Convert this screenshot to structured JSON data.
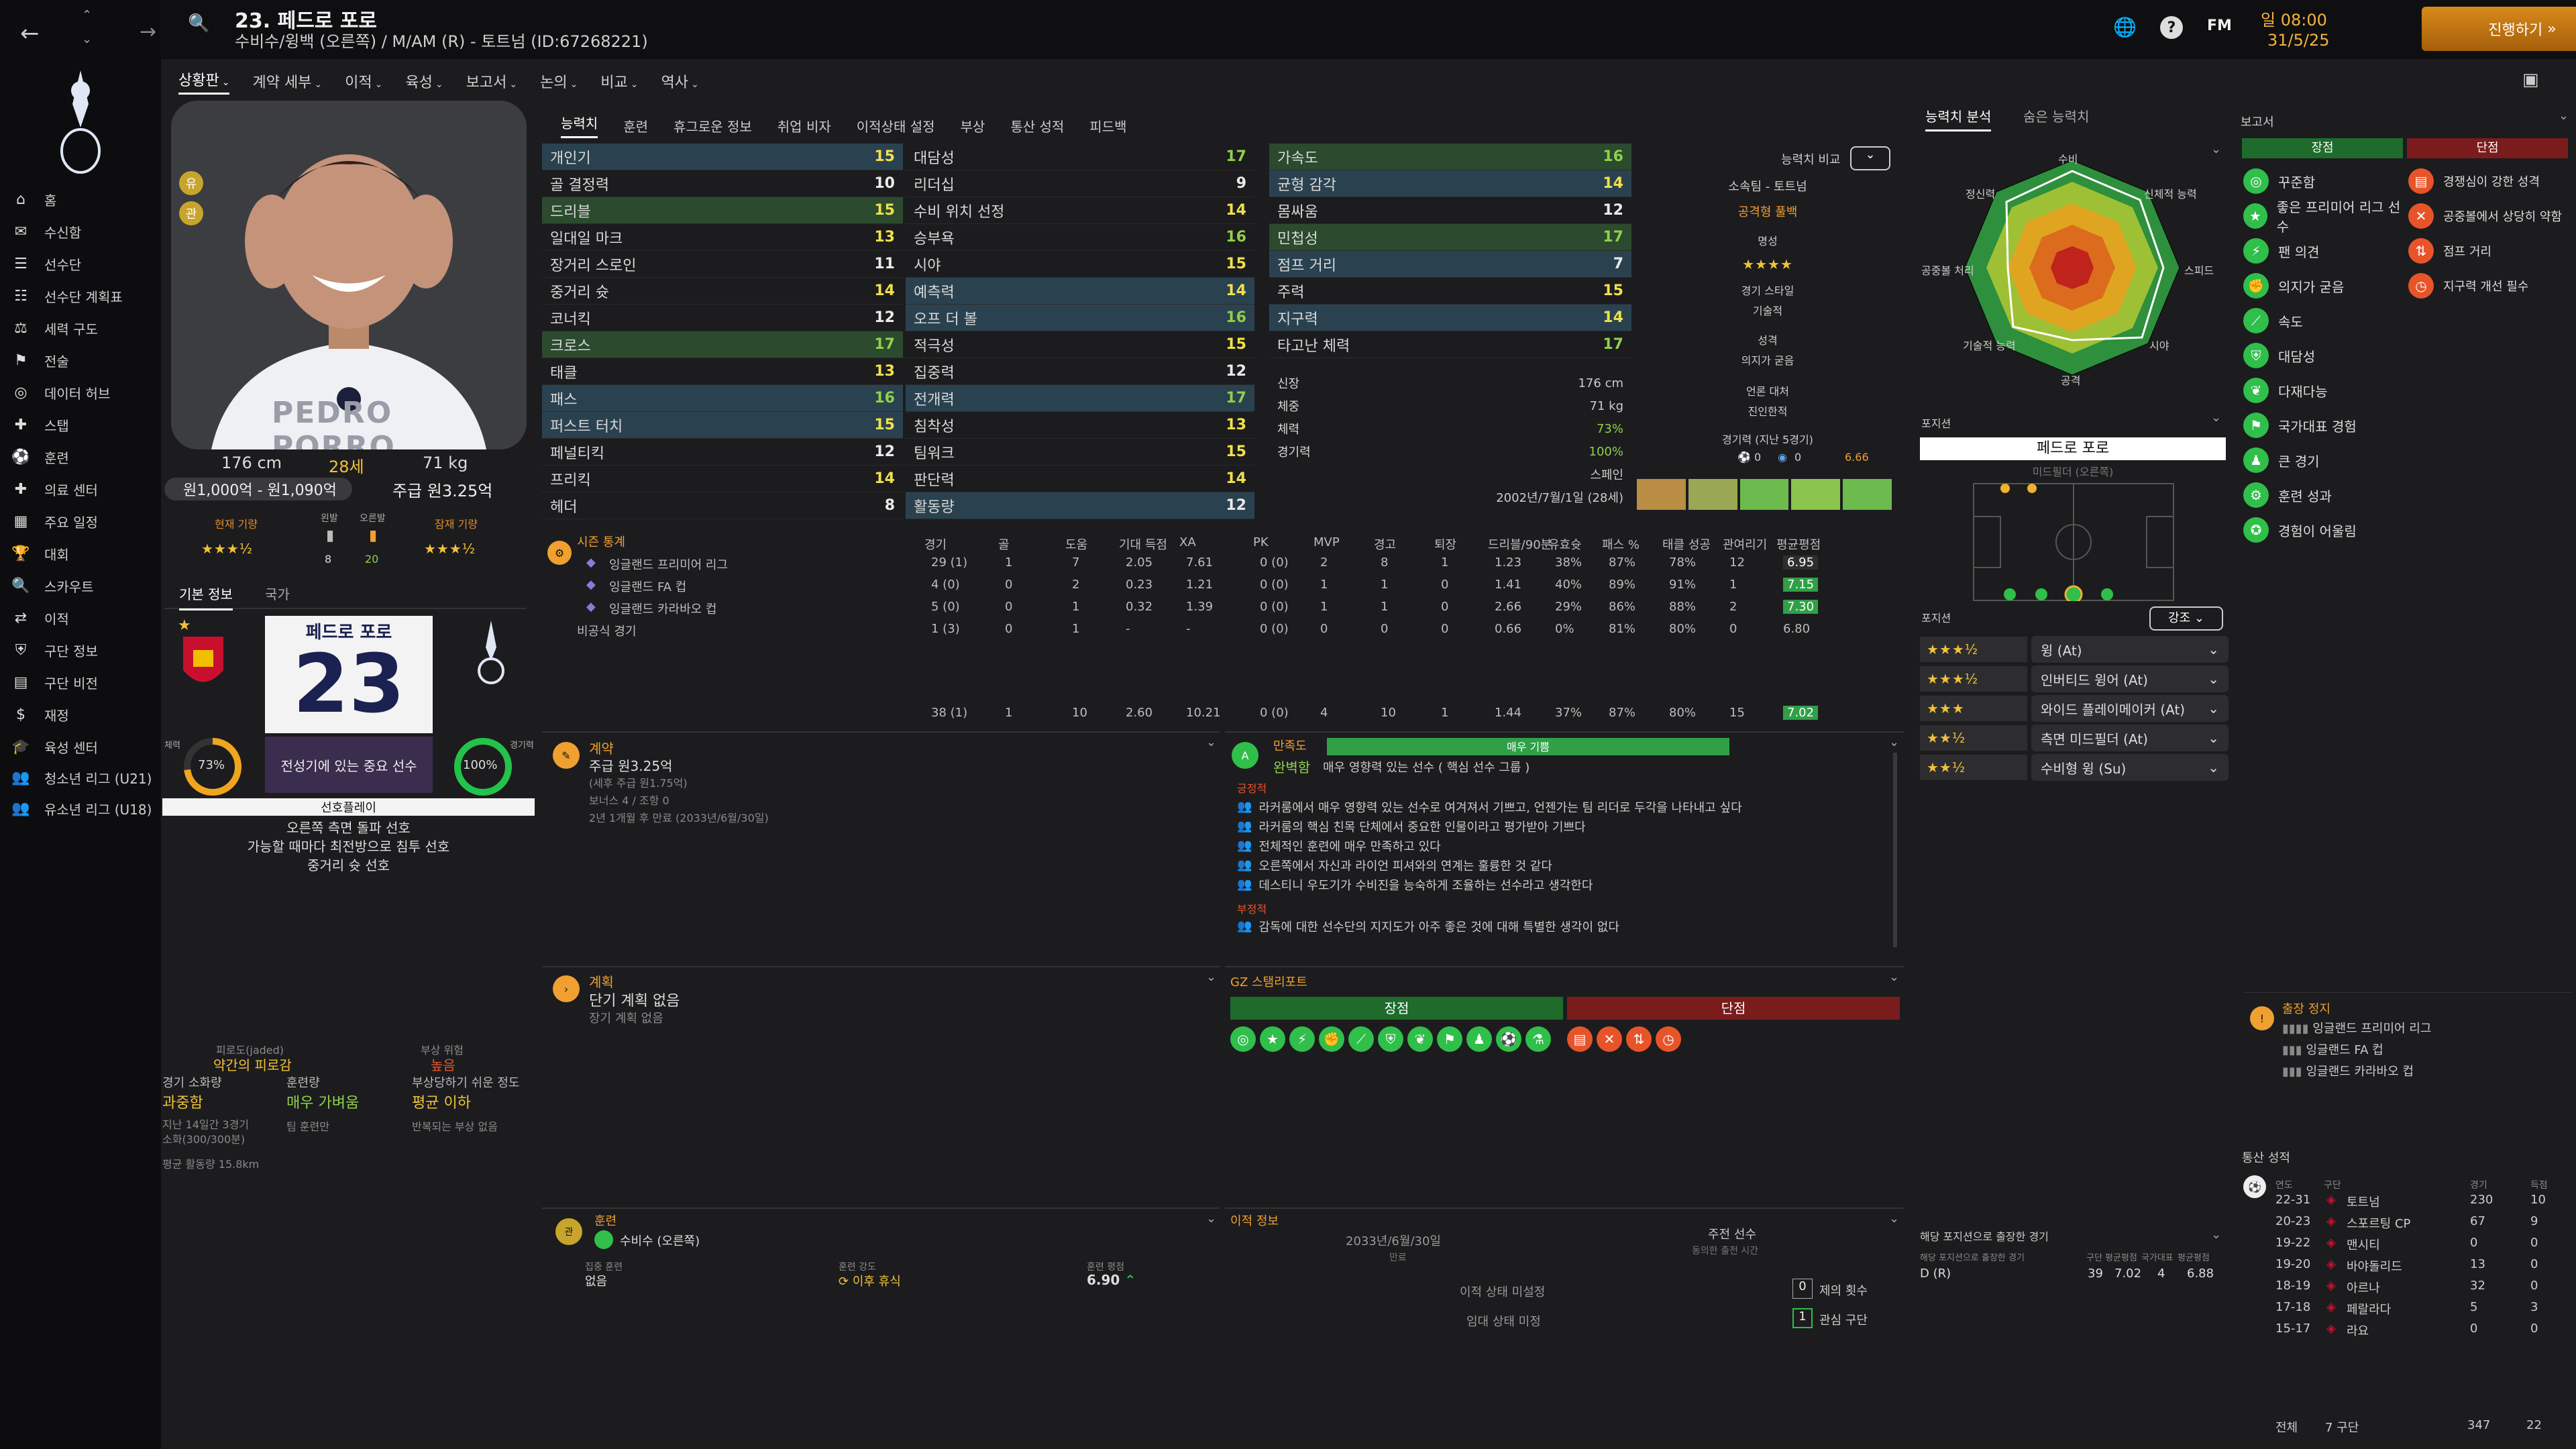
{
  "window": {
    "title": "23. 페드로 포로",
    "subtitle": "수비수/윙백 (오른쪽) / M/AM (R) - 토트넘 (ID:67268221)"
  },
  "clock": {
    "date": "일 08:00",
    "day": "31/5/25",
    "continue": "진행하기"
  },
  "brand": "FM",
  "nav": [
    "홈",
    "수신함",
    "선수단",
    "선수단 계획표",
    "세력 구도",
    "전술",
    "데이터 허브",
    "스탭",
    "훈련",
    "의료 센터",
    "주요 일정",
    "대회",
    "스카우트",
    "이적",
    "구단 정보",
    "구단 비전",
    "재정",
    "육성 센터",
    "청소년 리그 (U21)",
    "유소년 리그 (U18)"
  ],
  "subnav": [
    "상황판",
    "계약 세부",
    "이적",
    "육성",
    "보고서",
    "논의",
    "비교",
    "역사"
  ],
  "tabs": [
    "능력치",
    "훈련",
    "휴그로운 정보",
    "취업 비자",
    "이적상태 설정",
    "부상",
    "통산 성적",
    "피드백"
  ],
  "right_tabs": [
    "능력치 분석",
    "숨은 능력치"
  ],
  "profile": {
    "height": "176 cm",
    "age": "28세",
    "weight": "71 kg",
    "value": "원1,000억 - 원1,090억",
    "wage": "주급 원3.25억",
    "current_ability": "현재 기량",
    "potential_ability": "잠재 기량",
    "kit_l_label": "왼발",
    "kit_r_label": "오른발",
    "left_foot": "8",
    "right_foot": "20",
    "shirt_name": "PEDRO PORRO",
    "badges": [
      "유",
      "관"
    ]
  },
  "info_tabs": [
    "기본 정보",
    "국가"
  ],
  "card": {
    "name": "페드로 포로",
    "number": "23",
    "note": "전성기에 있는 중요 선수",
    "fitness_label": "체력",
    "fitness": "73%",
    "sharpness_label": "경기력",
    "sharpness": "100%"
  },
  "prefs": {
    "title": "선호플레이",
    "lines": [
      "오른쪽 측면 돌파 선호",
      "가능할 때마다 최전방으로 침투 선호",
      "중거리 슛 선호"
    ]
  },
  "fatigue": {
    "label1": "피로도(jaded)",
    "value1": "약간의 피로감",
    "label2": "부상 위험",
    "value2": "높음",
    "load_label": "경기 소화량",
    "load": "과중함",
    "training_label": "훈련량",
    "training": "매우 가벼움",
    "injury_label": "부상당하기 쉬운 정도",
    "injury": "평균 이하",
    "load_note": "지난 14일간 3경기\n소화(300/300분)",
    "train_note": "팀 훈련만",
    "injury_note": "반복되는 부상 없음",
    "distance": "평균 활동량 15.8km"
  },
  "attrs_col1": [
    [
      "개인기",
      "15"
    ],
    [
      "골 결정력",
      "10"
    ],
    [
      "드리블",
      "15"
    ],
    [
      "일대일 마크",
      "13"
    ],
    [
      "장거리 스로인",
      "11"
    ],
    [
      "중거리 슛",
      "14"
    ],
    [
      "코너킥",
      "12"
    ],
    [
      "크로스",
      "17"
    ],
    [
      "태클",
      "13"
    ],
    [
      "패스",
      "16"
    ],
    [
      "퍼스트 터치",
      "15"
    ],
    [
      "페널티킥",
      "12"
    ],
    [
      "프리킥",
      "14"
    ],
    [
      "헤더",
      "8"
    ]
  ],
  "attrs_col2": [
    [
      "대담성",
      "17"
    ],
    [
      "리더십",
      "9"
    ],
    [
      "수비 위치 선정",
      "14"
    ],
    [
      "승부욕",
      "16"
    ],
    [
      "시야",
      "15"
    ],
    [
      "예측력",
      "14"
    ],
    [
      "오프 더 볼",
      "16"
    ],
    [
      "적극성",
      "15"
    ],
    [
      "집중력",
      "12"
    ],
    [
      "전개력",
      "17"
    ],
    [
      "침착성",
      "13"
    ],
    [
      "팀워크",
      "15"
    ],
    [
      "판단력",
      "14"
    ],
    [
      "활동량",
      "12"
    ]
  ],
  "attrs_col3": [
    [
      "가속도",
      "16"
    ],
    [
      "균형 감각",
      "14"
    ],
    [
      "몸싸움",
      "12"
    ],
    [
      "민첩성",
      "17"
    ],
    [
      "점프 거리",
      "7"
    ],
    [
      "주력",
      "15"
    ],
    [
      "지구력",
      "14"
    ],
    [
      "타고난 체력",
      "17"
    ]
  ],
  "vitals": [
    [
      "신장",
      "176 cm"
    ],
    [
      "체중",
      "71 kg"
    ],
    [
      "체력",
      "73%"
    ],
    [
      "경기력",
      "100%"
    ],
    [
      "",
      "스페인"
    ],
    [
      "",
      "2002년/7월/1일 (28세)"
    ]
  ],
  "compare": {
    "label": "능력치 비교",
    "club": "소속팀 - 토트넘",
    "role": "공격형 풀백",
    "rep": "명성",
    "rep_stars": "★★★★",
    "style": "경기 스타일",
    "style_v": "기술적",
    "pers": "성격",
    "pers_v": "의지가 굳음",
    "media": "언론 대처",
    "media_v": "진인한적",
    "form": "경기력 (지난 5경기)",
    "g": "0",
    "a": "0",
    "rating": "6.66"
  },
  "season": {
    "title": "시즌 통계",
    "headers": [
      "경기",
      "골",
      "도움",
      "기대 득점",
      "XA",
      "PK",
      "MVP",
      "경고",
      "퇴장",
      "드리블/90분",
      "유효슛",
      "패스 %",
      "태클 성공",
      "관여리기",
      "평균평점"
    ],
    "rows": [
      [
        "잉글랜드 프리미어 리그",
        "29 (1)",
        "1",
        "7",
        "2.05",
        "7.61",
        "0 (0)",
        "2",
        "8",
        "1",
        "1.23",
        "38%",
        "87%",
        "78%",
        "12",
        "6.95"
      ],
      [
        "잉글랜드 FA 컵",
        "4 (0)",
        "0",
        "2",
        "0.23",
        "1.21",
        "0 (0)",
        "1",
        "1",
        "0",
        "1.41",
        "40%",
        "89%",
        "91%",
        "1",
        "7.15"
      ],
      [
        "잉글랜드 카라바오 컵",
        "5 (0)",
        "0",
        "1",
        "0.32",
        "1.39",
        "0 (0)",
        "1",
        "1",
        "0",
        "2.66",
        "29%",
        "86%",
        "88%",
        "2",
        "7.30"
      ],
      [
        "비공식 경기",
        "1 (3)",
        "0",
        "1",
        "-",
        "-",
        "0 (0)",
        "0",
        "0",
        "0",
        "0.66",
        "0%",
        "81%",
        "80%",
        "0",
        "6.80"
      ]
    ],
    "total": [
      "38 (1)",
      "1",
      "10",
      "2.60",
      "10.21",
      "0 (0)",
      "4",
      "10",
      "1",
      "1.44",
      "37%",
      "87%",
      "80%",
      "15",
      "7.02"
    ]
  },
  "contract": {
    "title": "계약",
    "wage": "주급 원3.25억",
    "sub": "(세후 주급 원1.75억)",
    "bonus": "보너스 4 / 조항 0",
    "expiry": "2년 1개월 후 만료 (2033년/6월/30일)"
  },
  "plan": {
    "title": "계획",
    "short": "단기 계획 없음",
    "long": "장기 계획 없음"
  },
  "satisfaction": {
    "title": "만족도",
    "role": "완벽함",
    "role_desc": "매우 영향력 있는 선수 ( 핵심 선수 그룹 )",
    "bar": "매우 기쁨",
    "pos_label": "긍정적",
    "positives": [
      "라커룸에서 매우 영향력 있는 선수로 여겨져서 기쁘고, 언젠가는 팀 리더로 두각을 나타내고 싶다",
      "라커룸의 핵심 친목 단체에서 중요한 인물이라고 평가받아 기쁘다",
      "전체적인 훈련에 매우 만족하고 있다",
      "오른쪽에서 자신과 라이언 피셔와의 연계는 훌륭한 것 같다",
      "데스티니 우도기가 수비진을 능숙하게 조율하는 선수라고 생각한다"
    ],
    "neg_label": "부정적",
    "negatives": [
      "감독에 대한 선수단의 지지도가 아주 좋은 것에 대해 특별한 생각이 없다"
    ]
  },
  "report": {
    "title": "GZ 스탬리포트",
    "strengths": "장점",
    "weaknesses": "단점",
    "green_icons": [
      "target",
      "star",
      "bolt",
      "fist",
      "boot",
      "shield",
      "wings",
      "flag",
      "crowd",
      "dribble",
      "flask"
    ],
    "red_icons": [
      "book",
      "cross",
      "swap",
      "clock"
    ]
  },
  "training": {
    "title": "훈련",
    "position": "수비수 (오른쪽)",
    "focus_label": "집중 훈련",
    "focus": "없음",
    "intensity_label": "훈련 강도",
    "intensity": "이후 휴식",
    "rating_label": "훈련 평점",
    "rating": "6.90"
  },
  "transfer": {
    "title": "이적 정보",
    "date": "2033년/6월/30일",
    "date_label": "만료",
    "rec": "주전 선수",
    "rec_label": "동의한 출전 시간",
    "status1": "이적 상태 미설정",
    "status2": "임대 상태 미정",
    "offers": "제의 횟수",
    "offers_n": "0",
    "interest": "관심 구단",
    "interest_n": "1"
  },
  "radar": {
    "labels": [
      "수비",
      "신체적 능력",
      "스피드",
      "시야",
      "공격",
      "기술적 능력",
      "공중볼 처리",
      "정신력"
    ]
  },
  "position": {
    "label": "포지션",
    "player": "페드로 포로",
    "role": "미드필더 (오른쪽)"
  },
  "roles": {
    "label": "포지션",
    "btn": "강조",
    "items": [
      [
        "★★★½",
        "윙 (At)"
      ],
      [
        "★★★½",
        "인버티드 윙어 (At)"
      ],
      [
        "★★★",
        "와이드 플레이메이커 (At)"
      ],
      [
        "★★½",
        "측면 미드필더 (At)"
      ],
      [
        "★★½",
        "수비형 윙 (Su)"
      ]
    ]
  },
  "played": {
    "title": "해당 포지션으로 출장한 경기",
    "h1": "해당 포지션으로 출장한 경기",
    "h2": "구단",
    "h3": "평균평점",
    "h4": "국가대표",
    "h5": "평균평점",
    "row": [
      "D (R)",
      "39",
      "7.02",
      "4",
      "6.88"
    ]
  },
  "reports": {
    "title": "보고서",
    "pros_h": "장점",
    "cons_h": "단점",
    "pros": [
      "꾸준함",
      "좋은 프리미어 리그 선수",
      "팬 의견",
      "의지가 굳음",
      "속도",
      "대담성",
      "다재다능",
      "국가대표 경험",
      "큰 경기",
      "훈련 성과",
      "경험이 어울림"
    ],
    "cons": [
      "경쟁심이 강한 성격",
      "공중볼에서 상당히 약함",
      "점프 거리",
      "지구력 개선 필수"
    ]
  },
  "suspension": {
    "title": "출장 정지",
    "rows": [
      "잉글랜드 프리미어 리그",
      "잉글랜드 FA 컵",
      "잉글랜드 카라바오 컵"
    ]
  },
  "career": {
    "title": "통산 성적",
    "h": [
      "연도",
      "구단",
      "경기",
      "득점"
    ],
    "rows": [
      [
        "22-31",
        "토트넘",
        "230",
        "10"
      ],
      [
        "20-23",
        "스포르팅 CP",
        "67",
        "9"
      ],
      [
        "19-22",
        "맨시티",
        "0",
        "0"
      ],
      [
        "19-20",
        "바야돌리드",
        "13",
        "0"
      ],
      [
        "18-19",
        "아르나",
        "32",
        "0"
      ],
      [
        "17-18",
        "페랄라다",
        "5",
        "3"
      ],
      [
        "15-17",
        "라요",
        "0",
        "0"
      ]
    ],
    "total_label": "전체",
    "total_clubs": "7 구단",
    "total_apps": "347",
    "total_goals": "22"
  }
}
